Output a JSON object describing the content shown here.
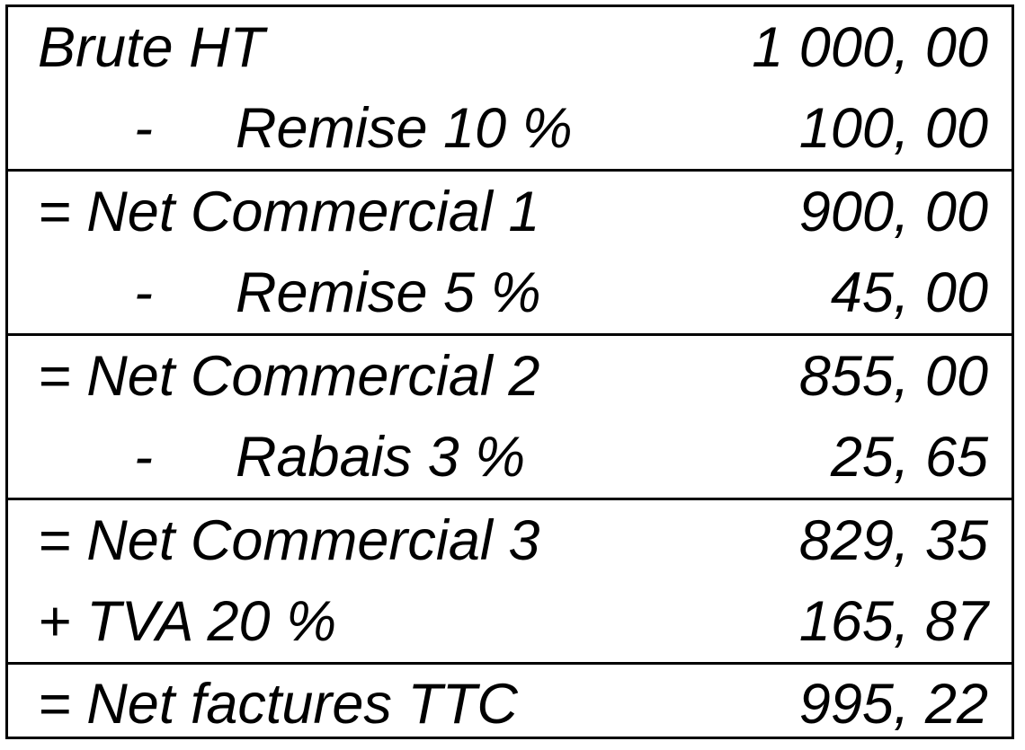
{
  "rows": [
    {
      "label": "Brute HT",
      "value": "1 000, 00"
    },
    {
      "prefix": "-",
      "label": "Remise 10 %",
      "value": "100, 00"
    },
    {
      "label": "= Net Commercial 1",
      "value": "900, 00"
    },
    {
      "prefix": "-",
      "label": "Remise 5 %",
      "value": "45, 00"
    },
    {
      "label": "= Net Commercial 2",
      "value": "855, 00"
    },
    {
      "prefix": "-",
      "label": "Rabais 3 %",
      "value": "25, 65"
    },
    {
      "label": "= Net Commercial 3",
      "value": "829, 35"
    },
    {
      "label": "+ TVA 20 %",
      "value": "165, 87"
    },
    {
      "label": "= Net factures TTC",
      "value": "995, 22"
    }
  ]
}
